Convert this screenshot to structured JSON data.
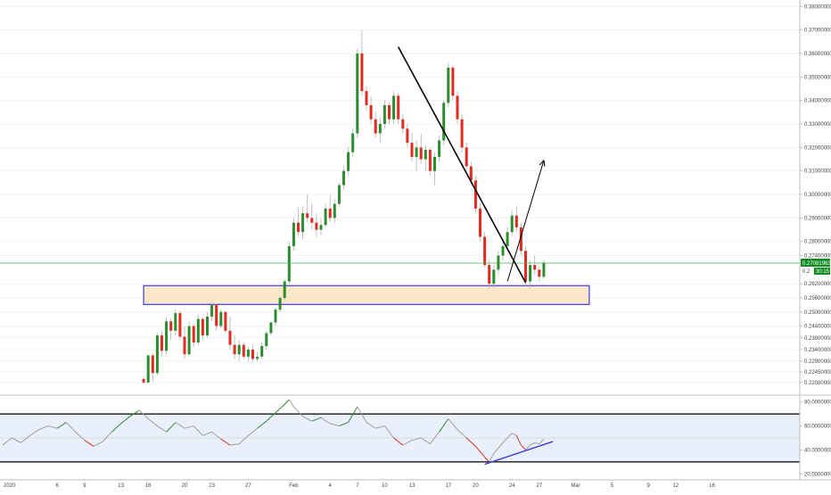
{
  "chart_data": {
    "type": "candlestick",
    "colors": {
      "up": "#2e8b2e",
      "down": "#e02b20",
      "wick": "#b0b0b0",
      "current_price_line": "#4caf50",
      "current_price_tag": "#0f8a1e",
      "support_zone_fill": "#fde3c0",
      "support_zone_border": "#3b3bd6",
      "trendline": "#000000",
      "rsi_fill": "#e9f0fb",
      "rsi_band_line": "#000000",
      "rsi_divergence_line": "#3b3bd6"
    },
    "price_axis": {
      "ylim": [
        0.215,
        0.382
      ],
      "ticks": [
        "0.38000000",
        "0.37000000",
        "0.36000000",
        "0.35000000",
        "0.34000000",
        "0.33000000",
        "0.32000000",
        "0.31000000",
        "0.30000000",
        "0.29000000",
        "0.28000000",
        "0.27400000",
        "0.26200000",
        "0.25600000",
        "0.25000000",
        "0.24400000",
        "0.23900000",
        "0.23400000",
        "0.22900000",
        "0.22450000",
        "0.22000000"
      ],
      "tick_values": [
        0.38,
        0.37,
        0.36,
        0.35,
        0.34,
        0.33,
        0.32,
        0.31,
        0.3,
        0.29,
        0.28,
        0.274,
        0.262,
        0.256,
        0.25,
        0.244,
        0.239,
        0.234,
        0.229,
        0.2245,
        0.22
      ]
    },
    "current_price": {
      "value": 0.2708,
      "label": "0.27081962",
      "countdown": "30:15",
      "partial_label": "0.2"
    },
    "time_axis": {
      "labels": [
        "2020",
        "6",
        "9",
        "13",
        "16",
        "20",
        "23",
        "27",
        "Feb",
        "4",
        "7",
        "10",
        "13",
        "17",
        "20",
        "24",
        "27",
        "Mar",
        "5",
        "9",
        "12",
        "16"
      ],
      "day_index": [
        0,
        6,
        9,
        13,
        16,
        20,
        23,
        27,
        32,
        36,
        39,
        42,
        45,
        49,
        52,
        56,
        59,
        63,
        67,
        71,
        74,
        78
      ]
    },
    "support_zone": {
      "top": 0.2612,
      "bottom": 0.2532,
      "start_day": 15.5,
      "end_day": 64.5
    },
    "resistance_trendline": {
      "from": {
        "day": 43.5,
        "price": 0.3628
      },
      "to": {
        "day": 57.5,
        "price": 0.2625
      }
    },
    "projection_arrow": {
      "from": {
        "day": 55.5,
        "price": 0.263
      },
      "to": {
        "day": 59.5,
        "price": 0.3145
      }
    },
    "candles": [
      {
        "d": 15.5,
        "o": 0.2215,
        "h": 0.2225,
        "l": 0.2195,
        "c": 0.22
      },
      {
        "d": 16.0,
        "o": 0.22,
        "h": 0.232,
        "l": 0.2195,
        "c": 0.2315
      },
      {
        "d": 16.5,
        "o": 0.2315,
        "h": 0.2325,
        "l": 0.2205,
        "c": 0.224
      },
      {
        "d": 17.0,
        "o": 0.224,
        "h": 0.241,
        "l": 0.223,
        "c": 0.24
      },
      {
        "d": 17.5,
        "o": 0.24,
        "h": 0.242,
        "l": 0.231,
        "c": 0.2335
      },
      {
        "d": 18.0,
        "o": 0.2335,
        "h": 0.248,
        "l": 0.232,
        "c": 0.246
      },
      {
        "d": 18.5,
        "o": 0.246,
        "h": 0.2475,
        "l": 0.238,
        "c": 0.242
      },
      {
        "d": 19.0,
        "o": 0.242,
        "h": 0.251,
        "l": 0.24,
        "c": 0.2495
      },
      {
        "d": 19.5,
        "o": 0.2495,
        "h": 0.2505,
        "l": 0.238,
        "c": 0.2395
      },
      {
        "d": 20.0,
        "o": 0.2395,
        "h": 0.244,
        "l": 0.23,
        "c": 0.232
      },
      {
        "d": 20.5,
        "o": 0.232,
        "h": 0.246,
        "l": 0.231,
        "c": 0.244
      },
      {
        "d": 21.0,
        "o": 0.244,
        "h": 0.245,
        "l": 0.235,
        "c": 0.237
      },
      {
        "d": 21.5,
        "o": 0.237,
        "h": 0.249,
        "l": 0.236,
        "c": 0.247
      },
      {
        "d": 22.0,
        "o": 0.247,
        "h": 0.248,
        "l": 0.238,
        "c": 0.24
      },
      {
        "d": 22.5,
        "o": 0.24,
        "h": 0.25,
        "l": 0.239,
        "c": 0.248
      },
      {
        "d": 23.0,
        "o": 0.248,
        "h": 0.254,
        "l": 0.246,
        "c": 0.253
      },
      {
        "d": 23.5,
        "o": 0.253,
        "h": 0.2535,
        "l": 0.242,
        "c": 0.244
      },
      {
        "d": 24.0,
        "o": 0.244,
        "h": 0.251,
        "l": 0.243,
        "c": 0.25
      },
      {
        "d": 24.5,
        "o": 0.25,
        "h": 0.2505,
        "l": 0.241,
        "c": 0.242
      },
      {
        "d": 25.0,
        "o": 0.242,
        "h": 0.248,
        "l": 0.234,
        "c": 0.236
      },
      {
        "d": 25.5,
        "o": 0.236,
        "h": 0.24,
        "l": 0.23,
        "c": 0.232
      },
      {
        "d": 26.0,
        "o": 0.232,
        "h": 0.238,
        "l": 0.229,
        "c": 0.236
      },
      {
        "d": 26.5,
        "o": 0.236,
        "h": 0.237,
        "l": 0.23,
        "c": 0.231
      },
      {
        "d": 27.0,
        "o": 0.231,
        "h": 0.235,
        "l": 0.229,
        "c": 0.234
      },
      {
        "d": 27.5,
        "o": 0.234,
        "h": 0.236,
        "l": 0.229,
        "c": 0.23
      },
      {
        "d": 28.0,
        "o": 0.23,
        "h": 0.233,
        "l": 0.229,
        "c": 0.231
      },
      {
        "d": 28.5,
        "o": 0.231,
        "h": 0.237,
        "l": 0.23,
        "c": 0.2355
      },
      {
        "d": 29.0,
        "o": 0.2355,
        "h": 0.242,
        "l": 0.234,
        "c": 0.241
      },
      {
        "d": 29.5,
        "o": 0.241,
        "h": 0.246,
        "l": 0.24,
        "c": 0.2455
      },
      {
        "d": 30.0,
        "o": 0.2455,
        "h": 0.252,
        "l": 0.244,
        "c": 0.251
      },
      {
        "d": 30.5,
        "o": 0.251,
        "h": 0.257,
        "l": 0.25,
        "c": 0.256
      },
      {
        "d": 31.0,
        "o": 0.256,
        "h": 0.264,
        "l": 0.255,
        "c": 0.263
      },
      {
        "d": 31.5,
        "o": 0.263,
        "h": 0.28,
        "l": 0.262,
        "c": 0.278
      },
      {
        "d": 32.0,
        "o": 0.278,
        "h": 0.29,
        "l": 0.276,
        "c": 0.288
      },
      {
        "d": 32.5,
        "o": 0.288,
        "h": 0.294,
        "l": 0.282,
        "c": 0.284
      },
      {
        "d": 33.0,
        "o": 0.284,
        "h": 0.295,
        "l": 0.281,
        "c": 0.292
      },
      {
        "d": 33.5,
        "o": 0.292,
        "h": 0.3,
        "l": 0.288,
        "c": 0.29
      },
      {
        "d": 34.0,
        "o": 0.29,
        "h": 0.296,
        "l": 0.285,
        "c": 0.288
      },
      {
        "d": 34.5,
        "o": 0.288,
        "h": 0.292,
        "l": 0.282,
        "c": 0.285
      },
      {
        "d": 35.0,
        "o": 0.285,
        "h": 0.29,
        "l": 0.283,
        "c": 0.287
      },
      {
        "d": 35.5,
        "o": 0.287,
        "h": 0.296,
        "l": 0.286,
        "c": 0.294
      },
      {
        "d": 36.0,
        "o": 0.294,
        "h": 0.3,
        "l": 0.288,
        "c": 0.29
      },
      {
        "d": 36.5,
        "o": 0.29,
        "h": 0.298,
        "l": 0.288,
        "c": 0.296
      },
      {
        "d": 37.0,
        "o": 0.296,
        "h": 0.305,
        "l": 0.295,
        "c": 0.304
      },
      {
        "d": 37.5,
        "o": 0.304,
        "h": 0.312,
        "l": 0.302,
        "c": 0.31
      },
      {
        "d": 38.0,
        "o": 0.31,
        "h": 0.32,
        "l": 0.308,
        "c": 0.318
      },
      {
        "d": 38.5,
        "o": 0.318,
        "h": 0.328,
        "l": 0.316,
        "c": 0.326
      },
      {
        "d": 39.0,
        "o": 0.326,
        "h": 0.362,
        "l": 0.324,
        "c": 0.36
      },
      {
        "d": 39.5,
        "o": 0.36,
        "h": 0.37,
        "l": 0.342,
        "c": 0.344
      },
      {
        "d": 40.0,
        "o": 0.344,
        "h": 0.346,
        "l": 0.336,
        "c": 0.338
      },
      {
        "d": 40.5,
        "o": 0.338,
        "h": 0.342,
        "l": 0.33,
        "c": 0.332
      },
      {
        "d": 41.0,
        "o": 0.332,
        "h": 0.335,
        "l": 0.324,
        "c": 0.326
      },
      {
        "d": 41.5,
        "o": 0.326,
        "h": 0.333,
        "l": 0.322,
        "c": 0.33
      },
      {
        "d": 42.0,
        "o": 0.33,
        "h": 0.34,
        "l": 0.328,
        "c": 0.338
      },
      {
        "d": 42.5,
        "o": 0.338,
        "h": 0.339,
        "l": 0.33,
        "c": 0.332
      },
      {
        "d": 43.0,
        "o": 0.332,
        "h": 0.344,
        "l": 0.33,
        "c": 0.342
      },
      {
        "d": 43.5,
        "o": 0.342,
        "h": 0.343,
        "l": 0.33,
        "c": 0.332
      },
      {
        "d": 44.0,
        "o": 0.332,
        "h": 0.334,
        "l": 0.326,
        "c": 0.328
      },
      {
        "d": 44.5,
        "o": 0.328,
        "h": 0.33,
        "l": 0.32,
        "c": 0.322
      },
      {
        "d": 45.0,
        "o": 0.322,
        "h": 0.326,
        "l": 0.314,
        "c": 0.316
      },
      {
        "d": 45.5,
        "o": 0.316,
        "h": 0.323,
        "l": 0.31,
        "c": 0.32
      },
      {
        "d": 46.0,
        "o": 0.32,
        "h": 0.326,
        "l": 0.313,
        "c": 0.315
      },
      {
        "d": 46.5,
        "o": 0.315,
        "h": 0.321,
        "l": 0.31,
        "c": 0.319
      },
      {
        "d": 47.0,
        "o": 0.319,
        "h": 0.32,
        "l": 0.308,
        "c": 0.31
      },
      {
        "d": 47.5,
        "o": 0.31,
        "h": 0.318,
        "l": 0.304,
        "c": 0.316
      },
      {
        "d": 48.0,
        "o": 0.316,
        "h": 0.325,
        "l": 0.314,
        "c": 0.323
      },
      {
        "d": 48.5,
        "o": 0.323,
        "h": 0.34,
        "l": 0.321,
        "c": 0.339
      },
      {
        "d": 49.0,
        "o": 0.339,
        "h": 0.356,
        "l": 0.337,
        "c": 0.354
      },
      {
        "d": 49.5,
        "o": 0.354,
        "h": 0.355,
        "l": 0.34,
        "c": 0.342
      },
      {
        "d": 50.0,
        "o": 0.342,
        "h": 0.344,
        "l": 0.33,
        "c": 0.332
      },
      {
        "d": 50.5,
        "o": 0.332,
        "h": 0.334,
        "l": 0.318,
        "c": 0.32
      },
      {
        "d": 51.0,
        "o": 0.32,
        "h": 0.322,
        "l": 0.31,
        "c": 0.312
      },
      {
        "d": 51.5,
        "o": 0.312,
        "h": 0.314,
        "l": 0.304,
        "c": 0.306
      },
      {
        "d": 52.0,
        "o": 0.306,
        "h": 0.308,
        "l": 0.292,
        "c": 0.294
      },
      {
        "d": 52.5,
        "o": 0.294,
        "h": 0.296,
        "l": 0.28,
        "c": 0.282
      },
      {
        "d": 53.0,
        "o": 0.282,
        "h": 0.284,
        "l": 0.269,
        "c": 0.27
      },
      {
        "d": 53.5,
        "o": 0.27,
        "h": 0.272,
        "l": 0.26,
        "c": 0.262
      },
      {
        "d": 54.0,
        "o": 0.262,
        "h": 0.27,
        "l": 0.26,
        "c": 0.268
      },
      {
        "d": 54.5,
        "o": 0.268,
        "h": 0.276,
        "l": 0.266,
        "c": 0.274
      },
      {
        "d": 55.0,
        "o": 0.274,
        "h": 0.28,
        "l": 0.272,
        "c": 0.278
      },
      {
        "d": 55.5,
        "o": 0.278,
        "h": 0.286,
        "l": 0.276,
        "c": 0.284
      },
      {
        "d": 56.0,
        "o": 0.284,
        "h": 0.293,
        "l": 0.282,
        "c": 0.291
      },
      {
        "d": 56.5,
        "o": 0.291,
        "h": 0.295,
        "l": 0.284,
        "c": 0.286
      },
      {
        "d": 57.0,
        "o": 0.286,
        "h": 0.288,
        "l": 0.274,
        "c": 0.276
      },
      {
        "d": 57.5,
        "o": 0.276,
        "h": 0.278,
        "l": 0.261,
        "c": 0.263
      },
      {
        "d": 58.0,
        "o": 0.263,
        "h": 0.272,
        "l": 0.26,
        "c": 0.27
      },
      {
        "d": 58.5,
        "o": 0.27,
        "h": 0.274,
        "l": 0.266,
        "c": 0.268
      },
      {
        "d": 59.0,
        "o": 0.268,
        "h": 0.269,
        "l": 0.263,
        "c": 0.265
      },
      {
        "d": 59.5,
        "o": 0.265,
        "h": 0.272,
        "l": 0.264,
        "c": 0.271
      }
    ],
    "rsi_panel": {
      "ylim": [
        15,
        85
      ],
      "ticks": [
        "80.00000000",
        "60.00000000",
        "40.00000000",
        "20.00000000"
      ],
      "tick_values": [
        80,
        60,
        40,
        20
      ],
      "band_upper": 70,
      "band_lower": 30,
      "mid_level": 50,
      "series": [
        {
          "d": 0.0,
          "v": 44
        },
        {
          "d": 1.0,
          "v": 50
        },
        {
          "d": 2.0,
          "v": 46
        },
        {
          "d": 3.0,
          "v": 52
        },
        {
          "d": 4.0,
          "v": 57
        },
        {
          "d": 5.0,
          "v": 60
        },
        {
          "d": 6.0,
          "v": 58
        },
        {
          "d": 7.0,
          "v": 63
        },
        {
          "d": 8.0,
          "v": 55
        },
        {
          "d": 9.0,
          "v": 48
        },
        {
          "d": 10.0,
          "v": 43
        },
        {
          "d": 11.0,
          "v": 47
        },
        {
          "d": 12.0,
          "v": 55
        },
        {
          "d": 13.0,
          "v": 62
        },
        {
          "d": 14.0,
          "v": 68
        },
        {
          "d": 15.0,
          "v": 73
        },
        {
          "d": 16.0,
          "v": 66
        },
        {
          "d": 17.0,
          "v": 60
        },
        {
          "d": 18.0,
          "v": 55
        },
        {
          "d": 19.0,
          "v": 63
        },
        {
          "d": 20.0,
          "v": 58
        },
        {
          "d": 21.0,
          "v": 60
        },
        {
          "d": 22.0,
          "v": 52
        },
        {
          "d": 23.0,
          "v": 55
        },
        {
          "d": 24.0,
          "v": 49
        },
        {
          "d": 25.0,
          "v": 44
        },
        {
          "d": 26.0,
          "v": 45
        },
        {
          "d": 27.0,
          "v": 52
        },
        {
          "d": 28.0,
          "v": 58
        },
        {
          "d": 29.0,
          "v": 64
        },
        {
          "d": 30.0,
          "v": 71
        },
        {
          "d": 31.0,
          "v": 78
        },
        {
          "d": 31.5,
          "v": 82
        },
        {
          "d": 32.0,
          "v": 76
        },
        {
          "d": 33.0,
          "v": 68
        },
        {
          "d": 34.0,
          "v": 64
        },
        {
          "d": 35.0,
          "v": 67
        },
        {
          "d": 36.0,
          "v": 62
        },
        {
          "d": 37.0,
          "v": 60
        },
        {
          "d": 38.0,
          "v": 63
        },
        {
          "d": 39.0,
          "v": 76
        },
        {
          "d": 40.0,
          "v": 63
        },
        {
          "d": 41.0,
          "v": 58
        },
        {
          "d": 42.0,
          "v": 60
        },
        {
          "d": 43.0,
          "v": 50
        },
        {
          "d": 44.0,
          "v": 44
        },
        {
          "d": 45.0,
          "v": 48
        },
        {
          "d": 46.0,
          "v": 50
        },
        {
          "d": 47.0,
          "v": 45
        },
        {
          "d": 48.0,
          "v": 55
        },
        {
          "d": 49.0,
          "v": 66
        },
        {
          "d": 50.0,
          "v": 57
        },
        {
          "d": 51.0,
          "v": 50
        },
        {
          "d": 52.0,
          "v": 43
        },
        {
          "d": 53.0,
          "v": 34
        },
        {
          "d": 53.5,
          "v": 30
        },
        {
          "d": 54.0,
          "v": 37
        },
        {
          "d": 55.0,
          "v": 46
        },
        {
          "d": 56.0,
          "v": 54
        },
        {
          "d": 56.5,
          "v": 52
        },
        {
          "d": 57.0,
          "v": 44
        },
        {
          "d": 57.5,
          "v": 40
        },
        {
          "d": 58.0,
          "v": 44
        },
        {
          "d": 58.5,
          "v": 46
        },
        {
          "d": 59.0,
          "v": 45
        },
        {
          "d": 59.5,
          "v": 49
        }
      ],
      "divergence_line": {
        "from": {
          "day": 53.0,
          "rsi": 28
        },
        "to": {
          "day": 60.5,
          "rsi": 47
        }
      }
    }
  }
}
